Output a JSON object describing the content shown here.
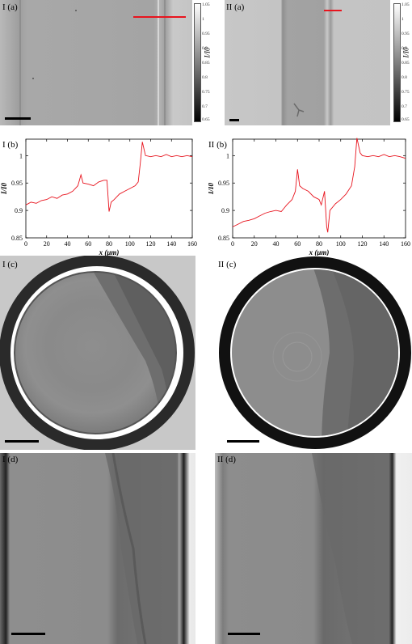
{
  "colorbar": {
    "title": "I/I0",
    "ticks": [
      "1.05",
      "1",
      "0.95",
      "0.9",
      "0.85",
      "0.8",
      "0.75",
      "0.7",
      "0.65"
    ]
  },
  "panels": {
    "I_a": {
      "label": "I (a)"
    },
    "II_a": {
      "label": "II (a)"
    },
    "I_b": {
      "label": "I (b)"
    },
    "II_b": {
      "label": "II (b)"
    },
    "I_c": {
      "label": "I (c)"
    },
    "II_c": {
      "label": "II (c)"
    },
    "I_d": {
      "label": "I (d)"
    },
    "II_d": {
      "label": "II (d)"
    }
  },
  "chart_data": [
    {
      "type": "line",
      "panel": "I (b)",
      "xlabel": "x (μm)",
      "ylabel": "I/I0",
      "xlim": [
        0,
        160
      ],
      "ylim": [
        0.85,
        1.03
      ],
      "xticks": [
        "0",
        "20",
        "40",
        "60",
        "80",
        "100",
        "120",
        "140",
        "160"
      ],
      "yticks": [
        "0.85",
        "0.9",
        "0.95",
        "1"
      ],
      "color": "#e8141e",
      "x": [
        0,
        5,
        10,
        15,
        20,
        25,
        30,
        35,
        40,
        45,
        50,
        53,
        55,
        60,
        65,
        70,
        75,
        78,
        80,
        82,
        85,
        90,
        95,
        100,
        105,
        108,
        110,
        112,
        115,
        120,
        125,
        130,
        135,
        140,
        145,
        150,
        155,
        160
      ],
      "y": [
        0.91,
        0.915,
        0.913,
        0.918,
        0.92,
        0.925,
        0.922,
        0.928,
        0.93,
        0.935,
        0.945,
        0.965,
        0.95,
        0.948,
        0.945,
        0.952,
        0.955,
        0.955,
        0.898,
        0.915,
        0.92,
        0.93,
        0.935,
        0.94,
        0.945,
        0.952,
        0.985,
        1.025,
        1.0,
        0.998,
        1.0,
        0.998,
        1.002,
        0.998,
        1.0,
        0.998,
        1.0,
        0.998
      ]
    },
    {
      "type": "line",
      "panel": "II (b)",
      "xlabel": "x (μm)",
      "ylabel": "I/I0",
      "xlim": [
        0,
        160
      ],
      "ylim": [
        0.85,
        1.03
      ],
      "xticks": [
        "0",
        "20",
        "40",
        "60",
        "80",
        "100",
        "120",
        "140",
        "160"
      ],
      "yticks": [
        "0.85",
        "0.9",
        "0.95",
        "1"
      ],
      "color": "#e8141e",
      "x": [
        0,
        5,
        10,
        15,
        20,
        25,
        30,
        35,
        40,
        45,
        50,
        55,
        58,
        60,
        62,
        65,
        70,
        75,
        80,
        82,
        85,
        87,
        88,
        90,
        95,
        100,
        105,
        110,
        113,
        115,
        118,
        120,
        125,
        130,
        135,
        140,
        145,
        150,
        155,
        160
      ],
      "y": [
        0.87,
        0.875,
        0.88,
        0.882,
        0.885,
        0.89,
        0.895,
        0.898,
        0.9,
        0.898,
        0.91,
        0.92,
        0.935,
        0.975,
        0.945,
        0.94,
        0.935,
        0.925,
        0.92,
        0.91,
        0.935,
        0.87,
        0.86,
        0.9,
        0.912,
        0.92,
        0.93,
        0.945,
        0.98,
        1.032,
        1.005,
        1.0,
        0.998,
        1.0,
        0.998,
        1.002,
        0.998,
        1.0,
        0.998,
        0.995
      ]
    }
  ]
}
